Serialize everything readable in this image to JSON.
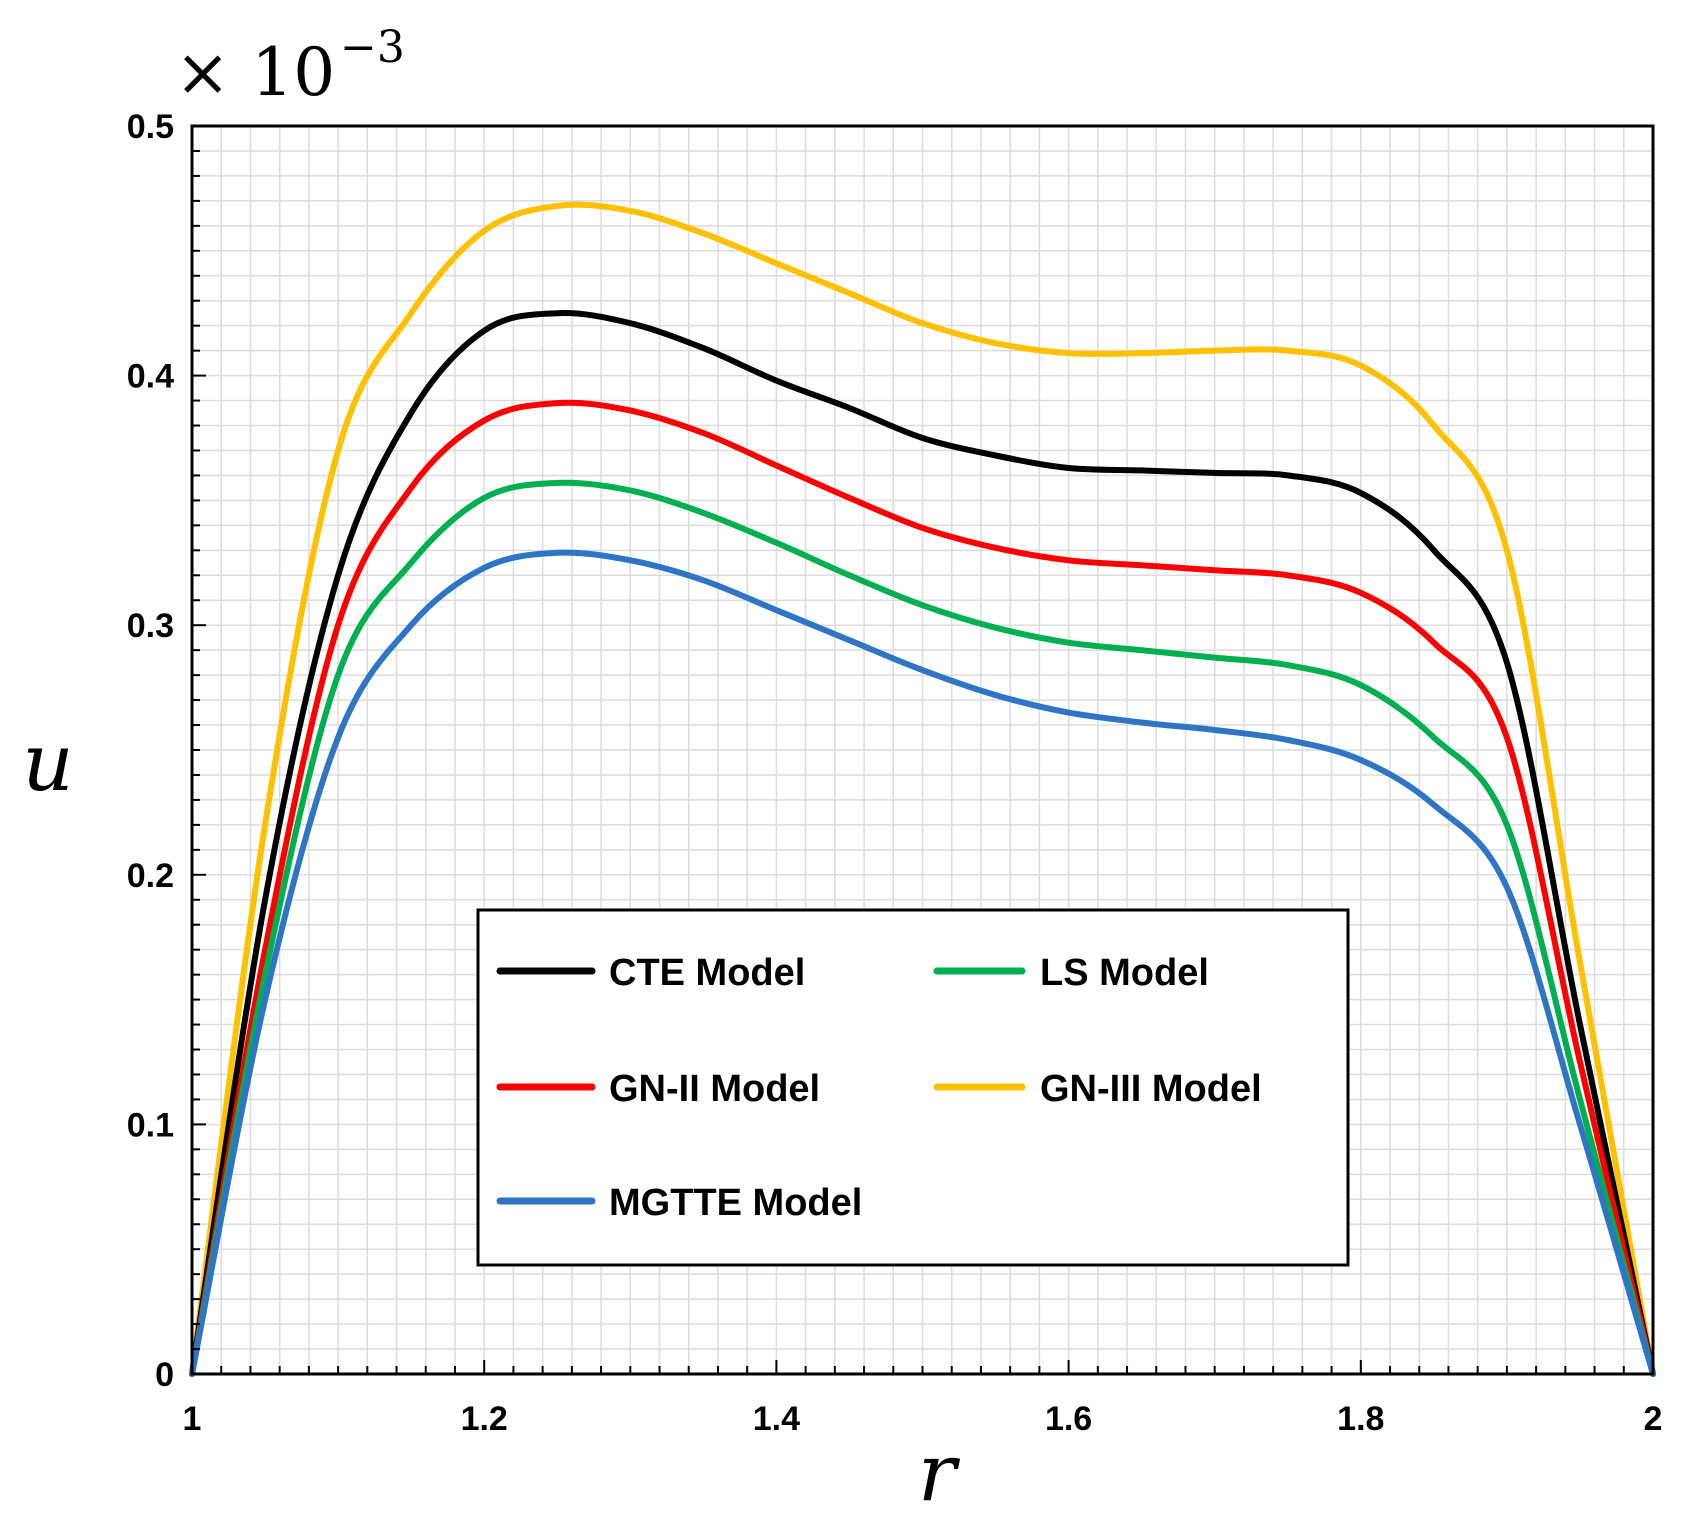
{
  "chart_data": {
    "type": "line",
    "xlabel": "r",
    "ylabel": "u",
    "multiplier": {
      "base": "× 10",
      "exponent": "−3"
    },
    "xlim": [
      1,
      2
    ],
    "ylim": [
      0,
      0.5
    ],
    "xticks": [
      1,
      1.2,
      1.4,
      1.6,
      1.8,
      2
    ],
    "xtick_labels": [
      "1",
      "1.2",
      "1.4",
      "1.6",
      "1.8",
      "2"
    ],
    "yticks": [
      0,
      0.1,
      0.2,
      0.3,
      0.4,
      0.5
    ],
    "ytick_labels": [
      "0",
      "0.1",
      "0.2",
      "0.3",
      "0.4",
      "0.5"
    ],
    "grid": true,
    "legend_position": "lower-center",
    "x": [
      1.0,
      1.05,
      1.1,
      1.15,
      1.2,
      1.25,
      1.3,
      1.35,
      1.4,
      1.45,
      1.5,
      1.55,
      1.6,
      1.65,
      1.7,
      1.75,
      1.8,
      1.85,
      1.9,
      1.95,
      2.0
    ],
    "series": [
      {
        "name": "CTE Model",
        "color": "#000000",
        "values": [
          0.0,
          0.19,
          0.32,
          0.385,
          0.418,
          0.425,
          0.421,
          0.411,
          0.398,
          0.387,
          0.375,
          0.368,
          0.363,
          0.362,
          0.361,
          0.36,
          0.353,
          0.33,
          0.285,
          0.14,
          0.0
        ]
      },
      {
        "name": "LS Model",
        "color": "#00b050",
        "values": [
          0.0,
          0.16,
          0.28,
          0.325,
          0.351,
          0.357,
          0.354,
          0.345,
          0.333,
          0.32,
          0.308,
          0.299,
          0.293,
          0.29,
          0.287,
          0.284,
          0.276,
          0.255,
          0.22,
          0.11,
          0.0
        ]
      },
      {
        "name": "GN-II Model",
        "color": "#ff0000",
        "values": [
          0.0,
          0.17,
          0.3,
          0.355,
          0.382,
          0.389,
          0.386,
          0.377,
          0.364,
          0.351,
          0.339,
          0.331,
          0.326,
          0.324,
          0.322,
          0.32,
          0.313,
          0.293,
          0.255,
          0.125,
          0.0
        ]
      },
      {
        "name": "GN-III Model",
        "color": "#ffc000",
        "values": [
          0.0,
          0.22,
          0.37,
          0.425,
          0.458,
          0.468,
          0.466,
          0.457,
          0.445,
          0.433,
          0.421,
          0.413,
          0.409,
          0.409,
          0.41,
          0.41,
          0.404,
          0.38,
          0.33,
          0.165,
          0.0
        ]
      },
      {
        "name": "MGTTE Model",
        "color": "#2f75c6",
        "values": [
          0.0,
          0.15,
          0.255,
          0.3,
          0.323,
          0.329,
          0.326,
          0.318,
          0.306,
          0.294,
          0.282,
          0.272,
          0.265,
          0.261,
          0.258,
          0.254,
          0.246,
          0.228,
          0.195,
          0.1,
          0.0
        ]
      }
    ]
  },
  "legend": {
    "items": [
      {
        "label": "CTE Model",
        "color": "#000000"
      },
      {
        "label": "LS Model",
        "color": "#00b050"
      },
      {
        "label": "GN-II Model",
        "color": "#ff0000"
      },
      {
        "label": "GN-III Model",
        "color": "#ffc000"
      },
      {
        "label": "MGTTE Model",
        "color": "#2f75c6"
      }
    ]
  }
}
